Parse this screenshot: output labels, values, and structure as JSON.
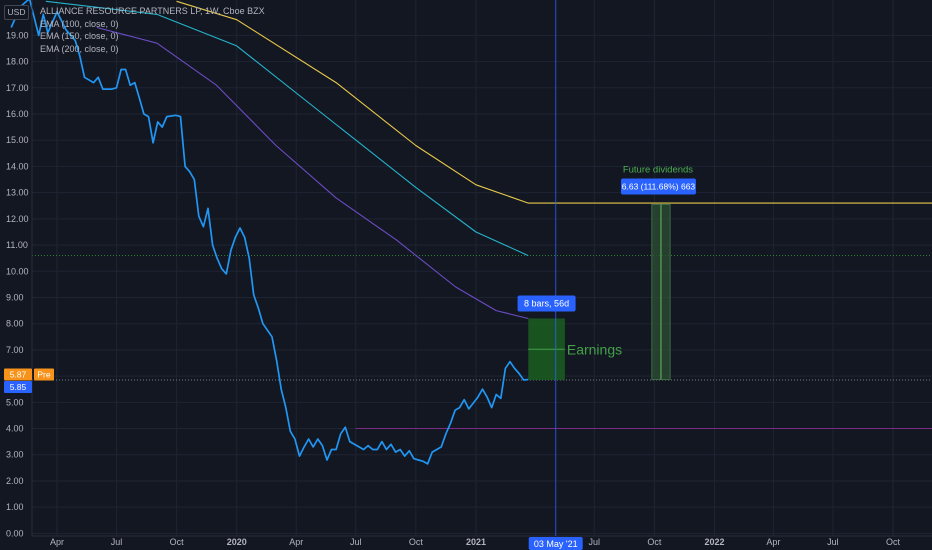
{
  "currency_label": "USD",
  "legend": {
    "symbol_title": "ALLIANCE RESOURCE PARTNERS LP, 1W, Cboe BZX",
    "ema_lines": [
      "EMA (100, close, 0)",
      "EMA (150, close, 0)",
      "EMA (200, close, 0)"
    ]
  },
  "price_badges": {
    "last_price": "5.87",
    "pre_label": "Pre",
    "pre_price": "5.85"
  },
  "annotations": {
    "bars_range": "8 bars, 56d",
    "earnings_label": "Earnings",
    "future_dividends_label": "Future dividends",
    "dividend_measure": "6.63 (111.68%) 663",
    "crosshair_date": "03 May '21"
  },
  "colors": {
    "background": "#131722",
    "price_line": "#2196f3",
    "ema_100": "#6a4cc2",
    "ema_150": "#26b3c9",
    "ema_200": "#e7c84a",
    "earnings_box": "#1b5e20",
    "dividend_box": "#2e4f33",
    "support_line": "#7b2a86",
    "badge_blue": "#2962ff",
    "badge_orange": "#f7931a"
  },
  "chart_data": {
    "type": "line",
    "title": "ALLIANCE RESOURCE PARTNERS LP, 1W, Cboe BZX",
    "y_axis": {
      "ticks": [
        "0.00",
        "1.00",
        "2.00",
        "3.00",
        "4.00",
        "5.00",
        "6.00",
        "7.00",
        "8.00",
        "9.00",
        "10.00",
        "11.00",
        "12.00",
        "13.00",
        "14.00",
        "15.00",
        "16.00",
        "17.00",
        "18.00",
        "19.00"
      ],
      "range": [
        -0.1,
        20.35
      ]
    },
    "x_axis": {
      "ticks": [
        "Apr",
        "Jul",
        "Oct",
        "2020",
        "Apr",
        "Jul",
        "Oct",
        "2021",
        "Jul",
        "Oct",
        "2022",
        "Apr",
        "Jul",
        "Oct"
      ],
      "tick_dates": [
        "2019-04-01",
        "2019-07-01",
        "2019-10-01",
        "2020-01-01",
        "2020-04-01",
        "2020-07-01",
        "2020-10-01",
        "2021-01-01",
        "2021-07-01",
        "2021-10-01",
        "2022-01-01",
        "2022-04-01",
        "2022-07-01",
        "2022-10-01"
      ]
    },
    "series": [
      {
        "name": "ALLIANCE RESOURCE PARTNERS LP",
        "points": [
          [
            "2019-01-21",
            19.3
          ],
          [
            "2019-02-04",
            20.1
          ],
          [
            "2019-02-18",
            20.4
          ],
          [
            "2019-03-04",
            19.0
          ],
          [
            "2019-03-11",
            19.8
          ],
          [
            "2019-03-18",
            19.1
          ],
          [
            "2019-04-01",
            19.9
          ],
          [
            "2019-04-15",
            19.2
          ],
          [
            "2019-04-29",
            18.8
          ],
          [
            "2019-05-06",
            18.2
          ],
          [
            "2019-05-13",
            17.4
          ],
          [
            "2019-05-27",
            17.2
          ],
          [
            "2019-06-03",
            17.4
          ],
          [
            "2019-06-10",
            16.95
          ],
          [
            "2019-06-24",
            16.95
          ],
          [
            "2019-07-01",
            17.0
          ],
          [
            "2019-07-08",
            17.7
          ],
          [
            "2019-07-15",
            17.7
          ],
          [
            "2019-07-22",
            17.1
          ],
          [
            "2019-07-29",
            17.2
          ],
          [
            "2019-08-05",
            16.6
          ],
          [
            "2019-08-12",
            16.0
          ],
          [
            "2019-08-19",
            15.9
          ],
          [
            "2019-08-26",
            14.9
          ],
          [
            "2019-09-02",
            15.7
          ],
          [
            "2019-09-09",
            15.5
          ],
          [
            "2019-09-16",
            15.9
          ],
          [
            "2019-09-30",
            15.95
          ],
          [
            "2019-10-07",
            15.9
          ],
          [
            "2019-10-14",
            14.0
          ],
          [
            "2019-10-21",
            13.8
          ],
          [
            "2019-10-28",
            13.5
          ],
          [
            "2019-11-04",
            12.1
          ],
          [
            "2019-11-11",
            11.7
          ],
          [
            "2019-11-18",
            12.4
          ],
          [
            "2019-11-25",
            11.0
          ],
          [
            "2019-12-02",
            10.5
          ],
          [
            "2019-12-09",
            10.1
          ],
          [
            "2019-12-16",
            9.9
          ],
          [
            "2019-12-23",
            10.8
          ],
          [
            "2019-12-30",
            11.3
          ],
          [
            "2020-01-06",
            11.65
          ],
          [
            "2020-01-13",
            11.3
          ],
          [
            "2020-01-20",
            10.5
          ],
          [
            "2020-01-27",
            9.1
          ],
          [
            "2020-02-03",
            8.6
          ],
          [
            "2020-02-10",
            8.0
          ],
          [
            "2020-02-24",
            7.5
          ],
          [
            "2020-03-02",
            6.6
          ],
          [
            "2020-03-09",
            5.5
          ],
          [
            "2020-03-16",
            4.8
          ],
          [
            "2020-03-23",
            3.9
          ],
          [
            "2020-03-30",
            3.6
          ],
          [
            "2020-04-06",
            2.95
          ],
          [
            "2020-04-13",
            3.3
          ],
          [
            "2020-04-20",
            3.6
          ],
          [
            "2020-04-27",
            3.3
          ],
          [
            "2020-05-04",
            3.6
          ],
          [
            "2020-05-11",
            3.35
          ],
          [
            "2020-05-18",
            2.8
          ],
          [
            "2020-05-25",
            3.2
          ],
          [
            "2020-06-01",
            3.2
          ],
          [
            "2020-06-08",
            3.8
          ],
          [
            "2020-06-15",
            4.05
          ],
          [
            "2020-06-22",
            3.5
          ],
          [
            "2020-07-06",
            3.3
          ],
          [
            "2020-07-13",
            3.2
          ],
          [
            "2020-07-20",
            3.35
          ],
          [
            "2020-07-27",
            3.2
          ],
          [
            "2020-08-03",
            3.2
          ],
          [
            "2020-08-10",
            3.5
          ],
          [
            "2020-08-17",
            3.2
          ],
          [
            "2020-08-24",
            3.4
          ],
          [
            "2020-08-31",
            3.1
          ],
          [
            "2020-09-07",
            3.2
          ],
          [
            "2020-09-14",
            2.95
          ],
          [
            "2020-09-21",
            3.15
          ],
          [
            "2020-09-28",
            2.85
          ],
          [
            "2020-10-05",
            2.8
          ],
          [
            "2020-10-12",
            2.75
          ],
          [
            "2020-10-19",
            2.65
          ],
          [
            "2020-10-26",
            3.1
          ],
          [
            "2020-11-02",
            3.2
          ],
          [
            "2020-11-09",
            3.3
          ],
          [
            "2020-11-16",
            3.8
          ],
          [
            "2020-11-23",
            4.2
          ],
          [
            "2020-11-30",
            4.7
          ],
          [
            "2020-12-07",
            4.8
          ],
          [
            "2020-12-14",
            5.1
          ],
          [
            "2020-12-21",
            4.75
          ],
          [
            "2021-01-04",
            5.2
          ],
          [
            "2021-01-11",
            5.5
          ],
          [
            "2021-01-18",
            5.2
          ],
          [
            "2021-01-25",
            4.8
          ],
          [
            "2021-02-01",
            5.3
          ],
          [
            "2021-02-08",
            5.15
          ],
          [
            "2021-02-15",
            6.3
          ],
          [
            "2021-02-22",
            6.55
          ],
          [
            "2021-03-01",
            6.3
          ],
          [
            "2021-03-08",
            6.1
          ],
          [
            "2021-03-15",
            5.85
          ],
          [
            "2021-03-22",
            5.87
          ]
        ]
      },
      {
        "name": "EMA (100, close, 0)",
        "points": [
          [
            "2019-06-01",
            19.3
          ],
          [
            "2019-09-01",
            18.7
          ],
          [
            "2019-12-01",
            17.1
          ],
          [
            "2020-03-01",
            14.8
          ],
          [
            "2020-06-01",
            12.8
          ],
          [
            "2020-09-01",
            11.2
          ],
          [
            "2020-12-01",
            9.4
          ],
          [
            "2021-02-01",
            8.5
          ],
          [
            "2021-03-22",
            8.2
          ]
        ]
      },
      {
        "name": "EMA (150, close, 0)",
        "points": [
          [
            "2019-03-15",
            20.3
          ],
          [
            "2019-09-01",
            19.8
          ],
          [
            "2020-01-01",
            18.6
          ],
          [
            "2020-06-01",
            15.6
          ],
          [
            "2020-10-01",
            13.2
          ],
          [
            "2021-01-01",
            11.5
          ],
          [
            "2021-03-22",
            10.6
          ]
        ]
      },
      {
        "name": "EMA (200, close, 0)",
        "points": [
          [
            "2019-10-01",
            20.3
          ],
          [
            "2020-01-01",
            19.6
          ],
          [
            "2020-06-01",
            17.2
          ],
          [
            "2020-10-01",
            14.8
          ],
          [
            "2021-01-01",
            13.3
          ],
          [
            "2021-03-22",
            12.6
          ],
          [
            "2022-12-31",
            12.6
          ]
        ]
      }
    ],
    "horizontal_levels": [
      {
        "value": 10.6,
        "style": "dotted-green"
      },
      {
        "value": 5.85,
        "style": "dotted-gray"
      },
      {
        "value": 4.0,
        "style": "solid-purple",
        "from": "2020-07-01"
      }
    ],
    "earnings_range": {
      "from": "2021-03-22",
      "to": "2021-05-17",
      "low": 5.85,
      "high": 8.2
    },
    "dividend_range": {
      "from": "2021-09-27",
      "to": "2021-10-25",
      "low": 5.87,
      "high": 12.55
    },
    "crosshair_x": "2021-05-03"
  }
}
